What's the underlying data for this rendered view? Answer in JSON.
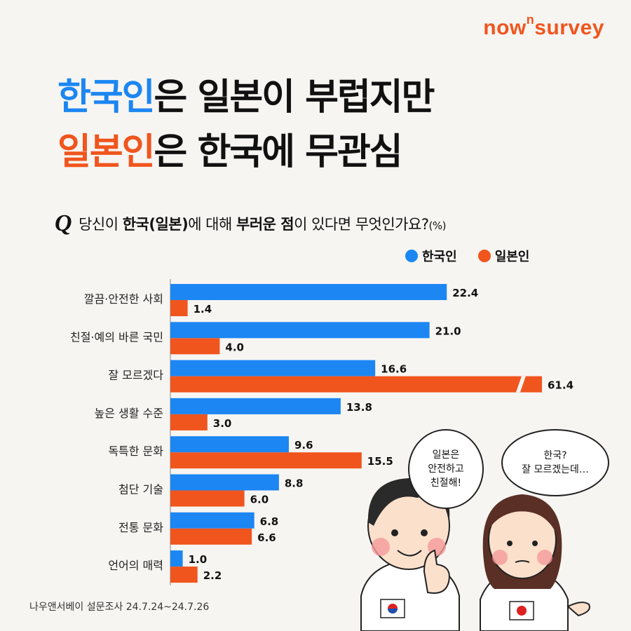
{
  "brand": {
    "pre": "now",
    "sup": "n",
    "post": "survey"
  },
  "headline": {
    "line1_accent": "한국인",
    "line1_mid": "은 ",
    "line1_rest": "일본이 부럽지만",
    "line2_accent": "일본인",
    "line2_mid": "은 ",
    "line2_rest": "한국에 무관심"
  },
  "question": {
    "q": "Q",
    "p1": "당신이 ",
    "b1": "한국(일본)",
    "p2": "에 대해 ",
    "b2": "부러운 점",
    "p3": "이 있다면 무엇인가요?",
    "unit": "(%)"
  },
  "legend": [
    {
      "label": "한국인",
      "color": "#1c86f2"
    },
    {
      "label": "일본인",
      "color": "#f0551e"
    }
  ],
  "chart_data": {
    "type": "bar",
    "orientation": "horizontal",
    "categories": [
      "깔끔·안전한 사회",
      "친절·예의 바른 국민",
      "잘 모르겠다",
      "높은 생활 수준",
      "독특한 문화",
      "첨단 기술",
      "전통 문화",
      "언어의 매력"
    ],
    "series": [
      {
        "name": "한국인",
        "color": "#1c86f2",
        "values": [
          22.4,
          21.0,
          16.6,
          13.8,
          9.6,
          8.8,
          6.8,
          1.0
        ]
      },
      {
        "name": "일본인",
        "color": "#f0551e",
        "values": [
          1.4,
          4.0,
          61.4,
          3.0,
          15.5,
          6.0,
          6.6,
          2.2
        ]
      }
    ],
    "broken_bar_note": "61.4 bar shown with axis break"
  },
  "bubbles": {
    "korean": "일본은\n안전하고\n친절해!",
    "japanese": "한국?\n잘 모르겠는데…"
  },
  "source": "나우앤서베이 설문조사 24.7.24~24.7.26"
}
